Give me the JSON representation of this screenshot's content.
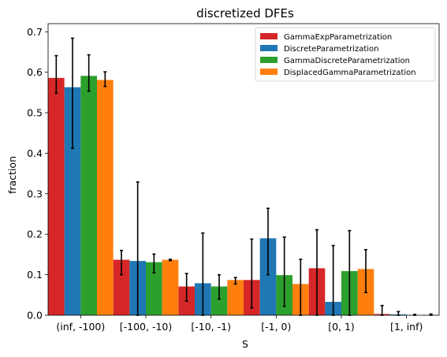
{
  "chart_data": {
    "type": "bar",
    "title": "discretized DFEs",
    "xlabel": "S",
    "ylabel": "fraction",
    "ylim": [
      0,
      0.72
    ],
    "yticks": [
      "0.0",
      "0.1",
      "0.2",
      "0.3",
      "0.4",
      "0.5",
      "0.6",
      "0.7"
    ],
    "categories": [
      "(inf, -100)",
      "[-100, -10)",
      "[-10, -1)",
      "[-1, 0)",
      "[0, 1)",
      "[1, inf)"
    ],
    "legend_position": "top-right",
    "grid": false,
    "series": [
      {
        "name": "GammaExpParametrization",
        "color": "#d62728",
        "values": [
          0.586,
          0.137,
          0.071,
          0.087,
          0.116,
          0.003
        ],
        "err_low": [
          0.548,
          0.1,
          0.035,
          0.018,
          0.0,
          0.0
        ],
        "err_high": [
          0.641,
          0.16,
          0.103,
          0.188,
          0.211,
          0.024
        ]
      },
      {
        "name": "DiscreteParametrization",
        "color": "#1f77b4",
        "values": [
          0.563,
          0.134,
          0.079,
          0.19,
          0.033,
          0.002
        ],
        "err_low": [
          0.412,
          0.0,
          0.0,
          0.1,
          0.0,
          0.0
        ],
        "err_high": [
          0.684,
          0.329,
          0.203,
          0.264,
          0.172,
          0.009
        ]
      },
      {
        "name": "GammaDiscreteParametrization",
        "color": "#2ca02c",
        "values": [
          0.591,
          0.131,
          0.071,
          0.099,
          0.109,
          0.0
        ],
        "err_low": [
          0.553,
          0.105,
          0.04,
          0.022,
          0.0,
          0.0
        ],
        "err_high": [
          0.643,
          0.151,
          0.1,
          0.193,
          0.209,
          0.002
        ]
      },
      {
        "name": "DisplacedGammaParametrization",
        "color": "#ff7f0e",
        "values": [
          0.581,
          0.137,
          0.087,
          0.077,
          0.114,
          0.001
        ],
        "err_low": [
          0.565,
          0.135,
          0.077,
          0.0,
          0.056,
          0.0
        ],
        "err_high": [
          0.601,
          0.138,
          0.093,
          0.138,
          0.162,
          0.003
        ]
      }
    ]
  }
}
